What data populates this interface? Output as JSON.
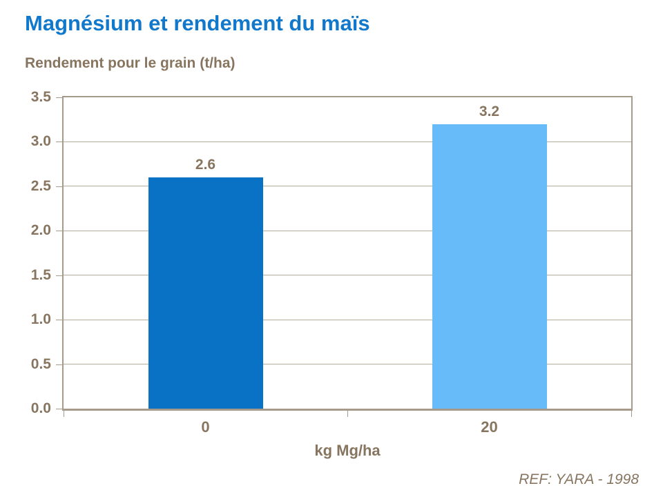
{
  "page": {
    "background": "#FFFFFF"
  },
  "theme": {
    "title_color": "#1178CB",
    "text_color": "#87755F",
    "axis_color": "#A69B8B",
    "gridline_color": "#B5AB9C",
    "page_bg": "#FFFFFF"
  },
  "footer": {
    "reference": "REF: YARA - 1998"
  },
  "chart_data": {
    "type": "bar",
    "title": "Magnésium et rendement du maïs",
    "ylabel": "Rendement pour le grain (t/ha)",
    "xlabel": "kg Mg/ha",
    "categories": [
      "0",
      "20"
    ],
    "values": [
      2.6,
      3.2
    ],
    "data_labels": [
      "2.6",
      "3.2"
    ],
    "colors": [
      "#0A72C4",
      "#67BBF8"
    ],
    "ylim": [
      0,
      3.5
    ],
    "ytick_step": 0.5,
    "ytick_decimals": 1,
    "grid": true,
    "legend": false
  }
}
